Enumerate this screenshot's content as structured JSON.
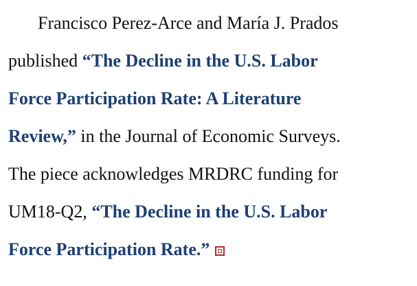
{
  "paragraph": {
    "lines": [
      [
        {
          "text": "Francisco Perez-Arce and María J. Prados",
          "link": false
        }
      ],
      [
        {
          "text": "published ",
          "link": false
        },
        {
          "text": "“The Decline in the U.S. Labor",
          "link": true
        }
      ],
      [
        {
          "text": "Force Participation Rate: A Literature",
          "link": true
        }
      ],
      [
        {
          "text": "Review,”",
          "link": true
        },
        {
          "text": " in the Journal of Economic Surveys.",
          "link": false
        }
      ],
      [
        {
          "text": "The piece acknowledges MRDRC funding for",
          "link": false
        }
      ],
      [
        {
          "text": "UM18-Q2, ",
          "link": false
        },
        {
          "text": "“The Decline in the U.S. Labor",
          "link": true
        }
      ],
      [
        {
          "text": "Force Participation Rate.”",
          "link": true
        }
      ]
    ]
  }
}
